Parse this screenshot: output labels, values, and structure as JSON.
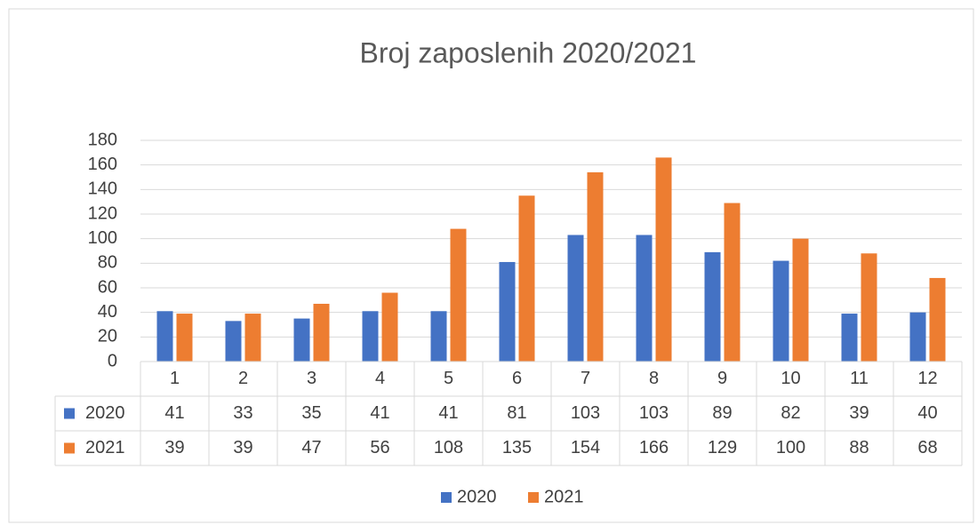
{
  "chart_data": {
    "type": "bar",
    "title": "Broj zaposlenih 2020/2021",
    "categories": [
      "1",
      "2",
      "3",
      "4",
      "5",
      "6",
      "7",
      "8",
      "9",
      "10",
      "11",
      "12"
    ],
    "series": [
      {
        "name": "2020",
        "color": "#4472c4",
        "values": [
          41,
          33,
          35,
          41,
          41,
          81,
          103,
          103,
          89,
          82,
          39,
          40
        ]
      },
      {
        "name": "2021",
        "color": "#ed7d31",
        "values": [
          39,
          39,
          47,
          56,
          108,
          135,
          154,
          166,
          129,
          100,
          88,
          68
        ]
      }
    ],
    "ylim": [
      0,
      180
    ],
    "yticks": [
      0,
      20,
      40,
      60,
      80,
      100,
      120,
      140,
      160,
      180
    ],
    "grid": true,
    "legend": "bottom",
    "data_table": true
  }
}
